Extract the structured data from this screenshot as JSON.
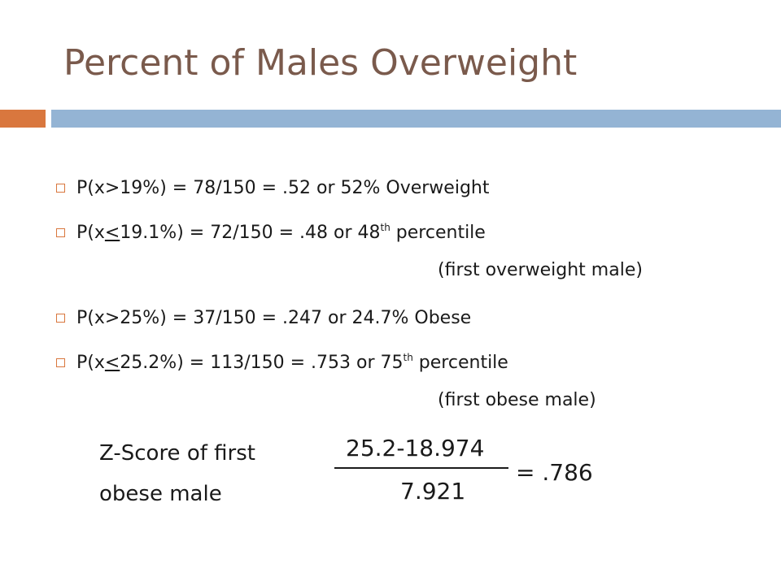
{
  "slide": {
    "title": "Percent of Males Overweight",
    "accent_colors": {
      "title": "#7a5a4c",
      "orange_bar": "#d9773e",
      "blue_bar": "#94b4d4"
    }
  },
  "bullets": [
    {
      "pre": "P(x>19%) = 78/150 = .52 or 52% Overweight"
    },
    {
      "pre": "P(x",
      "le": "<",
      "mid": "19.1%) = 72/150 = .48 or 48",
      "sup": "th",
      "post": " percentile",
      "continuation": "(first overweight male)"
    },
    {
      "pre": "P(x>25%) = 37/150 = .247 or 24.7% Obese"
    },
    {
      "pre": "P(x",
      "le": "<",
      "mid": "25.2%) = 113/150 = .753 or 75",
      "sup": "th",
      "post": " percentile",
      "continuation": "(first obese male)"
    }
  ],
  "zscore": {
    "label_line1": "Z-Score of first",
    "label_line2": "obese male",
    "numerator": "25.2-18.974",
    "denominator": "7.921",
    "result": "= .786"
  }
}
